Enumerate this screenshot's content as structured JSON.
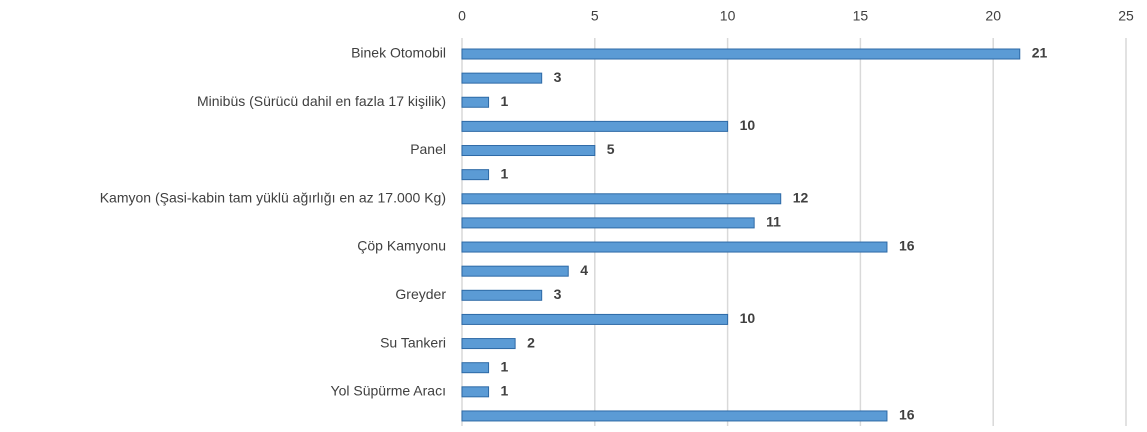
{
  "chart_data": {
    "type": "hbar",
    "categories": [
      "Binek Otomobil",
      null,
      "Minibüs (Sürücü dahil en fazla 17 kişilik)",
      null,
      "Panel",
      null,
      "Kamyon (Şasi-kabin tam yüklü ağırlığı en az 17.000 Kg)",
      null,
      "Çöp Kamyonu",
      null,
      "Greyder",
      null,
      "Su Tankeri",
      null,
      "Yol Süpürme Aracı",
      null
    ],
    "values": [
      21,
      3,
      1,
      10,
      5,
      1,
      12,
      11,
      16,
      4,
      3,
      10,
      2,
      1,
      1,
      16
    ],
    "color": "#5b9bd5",
    "xlim": [
      0,
      25
    ],
    "xticks": [
      0,
      5,
      10,
      15,
      20,
      25
    ],
    "grid": true
  }
}
